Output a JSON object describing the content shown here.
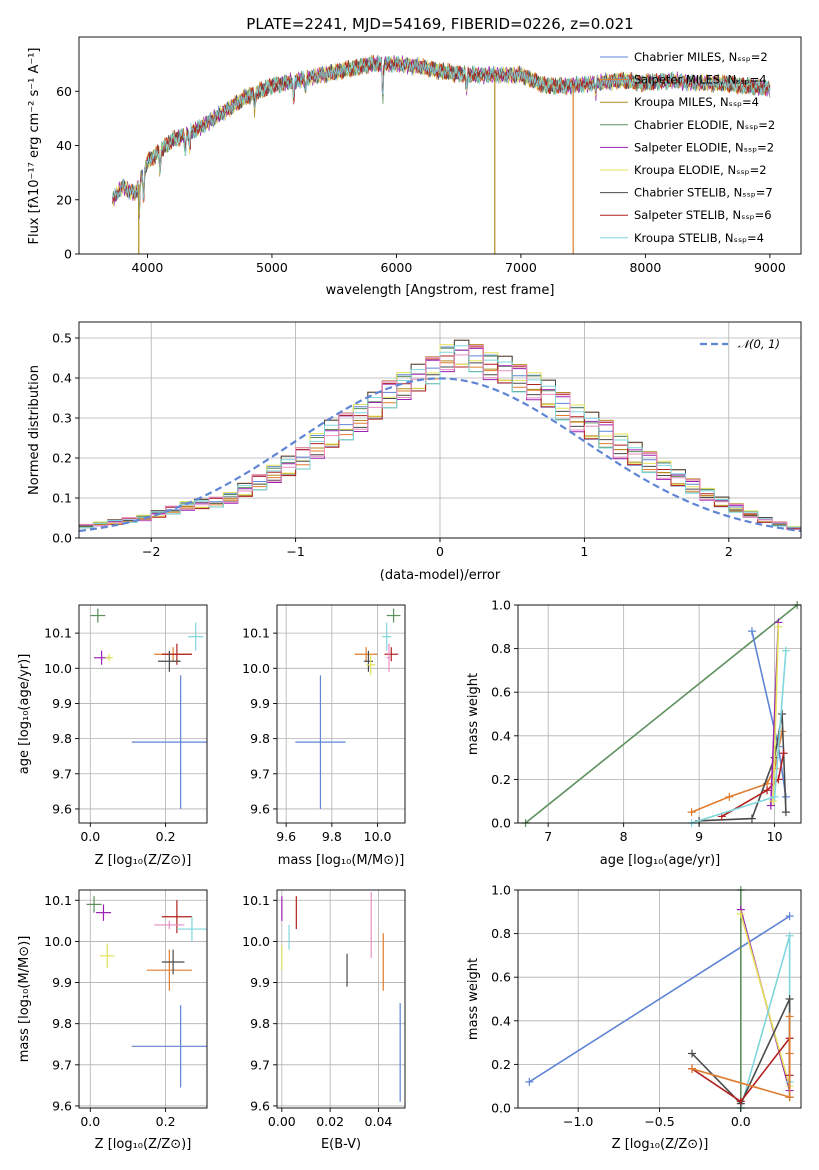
{
  "colors": {
    "chabrier_miles": "#5f85d5",
    "salpeter_miles": "#e07c2e",
    "kroupa_miles": "#b58a1e",
    "chabrier_elodie": "#5b8f5b",
    "salpeter_elodie": "#9b22b3",
    "kroupa_elodie": "#e3e25a",
    "chabrier_stelib": "#4a4a4a",
    "salpeter_stelib": "#b22020",
    "kroupa_stelib": "#7fd6dc",
    "pink": "#e88fc2",
    "normal_curve": "#5f85d5"
  },
  "chart_data": [
    {
      "id": "spectrum",
      "type": "line",
      "title": "PLATE=2241, MJD=54169, FIBERID=0226, z=0.021",
      "xlabel": "wavelength [Angstrom, rest frame]",
      "ylabel": "Flux [fλ10⁻¹⁷ erg cm⁻² s⁻¹ A⁻¹]",
      "xlim": [
        3450,
        9250
      ],
      "ylim": [
        0,
        80
      ],
      "xticks": [
        "4000",
        "5000",
        "6000",
        "7000",
        "8000",
        "9000"
      ],
      "yticks": [
        "0",
        "20",
        "40",
        "60"
      ],
      "grid": false,
      "legend_position": "top-right",
      "legend": [
        "Chabrier MILES, Nₛₛₚ=2",
        "Salpeter MILES, Nₛₛₚ=4",
        "Kroupa MILES, Nₛₛₚ=4",
        "Chabrier ELODIE, Nₛₛₚ=2",
        "Salpeter ELODIE, Nₛₛₚ=2",
        "Kroupa ELODIE, Nₛₛₚ=2",
        "Chabrier STELIB, Nₛₛₚ=7",
        "Salpeter STELIB, Nₛₛₚ=6",
        "Kroupa STELIB, Nₛₛₚ=4"
      ],
      "spectrum_envelope": {
        "x": [
          3720,
          3800,
          3900,
          4000,
          4100,
          4200,
          4400,
          4600,
          4800,
          5000,
          5200,
          5400,
          5600,
          5800,
          6000,
          6200,
          6400,
          6600,
          6800,
          7000,
          7200,
          7400,
          7600,
          7800,
          8000,
          8200,
          8400,
          8600,
          8800,
          9000
        ],
        "y": [
          20,
          25,
          22,
          34,
          38,
          42,
          46,
          52,
          58,
          62,
          64,
          66,
          68,
          70,
          70,
          69,
          67,
          66,
          66,
          66,
          62,
          62,
          63,
          64,
          63,
          64,
          63,
          63,
          62,
          61
        ]
      },
      "dips": [
        {
          "x": 3930,
          "y": 0
        },
        {
          "x": 6790,
          "y": 0
        },
        {
          "x": 7420,
          "y": 0
        }
      ]
    },
    {
      "id": "residuals",
      "type": "histogram",
      "xlabel": "(data-model)/error",
      "ylabel": "Normed distribution",
      "xlim": [
        -2.5,
        2.5
      ],
      "ylim": [
        0,
        0.54
      ],
      "xticks": [
        "−2",
        "−1",
        "0",
        "1",
        "2"
      ],
      "yticks": [
        "0.0",
        "0.1",
        "0.2",
        "0.3",
        "0.4",
        "0.5"
      ],
      "grid": true,
      "legend": [
        "𝒩(0, 1)"
      ],
      "legend_position": "top-right",
      "bin_width": 0.1,
      "base_density": [
        0.03,
        0.035,
        0.04,
        0.045,
        0.05,
        0.06,
        0.07,
        0.08,
        0.085,
        0.09,
        0.1,
        0.12,
        0.14,
        0.16,
        0.18,
        0.2,
        0.23,
        0.26,
        0.28,
        0.3,
        0.33,
        0.36,
        0.38,
        0.4,
        0.42,
        0.45,
        0.46,
        0.45,
        0.43,
        0.42,
        0.4,
        0.38,
        0.36,
        0.33,
        0.3,
        0.28,
        0.26,
        0.23,
        0.21,
        0.19,
        0.17,
        0.15,
        0.13,
        0.11,
        0.09,
        0.075,
        0.06,
        0.045,
        0.035,
        0.025
      ]
    },
    {
      "id": "age_vs_Z",
      "type": "errorbar",
      "xlabel": "Z [log₁₀(Z/Z⊙)]",
      "ylabel": "age  [log₁₀(age/yr)]",
      "xlim": [
        -0.03,
        0.31
      ],
      "ylim": [
        9.56,
        10.18
      ],
      "xticks": [
        "0.0",
        "0.2"
      ],
      "yticks": [
        "9.6",
        "9.7",
        "9.8",
        "9.9",
        "10.0",
        "10.1"
      ],
      "grid": true,
      "points": [
        {
          "model": "chabrier_miles",
          "x": 0.24,
          "xerr": 0.13,
          "y": 9.79,
          "yerr": 0.19
        },
        {
          "model": "salpeter_miles",
          "x": 0.22,
          "xerr": 0.05,
          "y": 10.04,
          "yerr": 0.02
        },
        {
          "model": "salpeter_stelib",
          "x": 0.23,
          "xerr": 0.04,
          "y": 10.04,
          "yerr": 0.03
        },
        {
          "model": "chabrier_stelib",
          "x": 0.21,
          "xerr": 0.03,
          "y": 10.02,
          "yerr": 0.03
        },
        {
          "model": "salpeter_elodie",
          "x": 0.03,
          "xerr": 0.02,
          "y": 10.03,
          "yerr": 0.02
        },
        {
          "model": "kroupa_stelib",
          "x": 0.28,
          "xerr": 0.02,
          "y": 10.09,
          "yerr": 0.04
        },
        {
          "model": "chabrier_elodie",
          "x": 0.02,
          "xerr": 0.02,
          "y": 10.15,
          "yerr": 0.02
        },
        {
          "model": "kroupa_elodie",
          "x": 0.05,
          "xerr": 0.01,
          "y": 10.03,
          "yerr": 0.01
        }
      ]
    },
    {
      "id": "age_vs_mass",
      "type": "errorbar",
      "xlabel": "mass [log₁₀(M/M⊙)]",
      "ylabel": "",
      "xlim": [
        9.56,
        10.12
      ],
      "ylim": [
        9.56,
        10.18
      ],
      "xticks": [
        "9.6",
        "9.8",
        "10.0"
      ],
      "yticks": [
        "9.6",
        "9.7",
        "9.8",
        "9.9",
        "10.0",
        "10.1"
      ],
      "grid": true,
      "points": [
        {
          "model": "chabrier_miles",
          "x": 9.75,
          "xerr": 0.11,
          "y": 9.79,
          "yerr": 0.19
        },
        {
          "model": "salpeter_miles",
          "x": 9.95,
          "xerr": 0.05,
          "y": 10.04,
          "yerr": 0.02
        },
        {
          "model": "salpeter_stelib",
          "x": 10.06,
          "xerr": 0.03,
          "y": 10.04,
          "yerr": 0.02
        },
        {
          "model": "chabrier_stelib",
          "x": 9.96,
          "xerr": 0.02,
          "y": 10.02,
          "yerr": 0.03
        },
        {
          "model": "kroupa_stelib",
          "x": 10.04,
          "xerr": 0.02,
          "y": 10.09,
          "yerr": 0.04
        },
        {
          "model": "chabrier_elodie",
          "x": 10.07,
          "xerr": 0.03,
          "y": 10.15,
          "yerr": 0.02
        },
        {
          "model": "pink",
          "x": 10.05,
          "xerr": 0.01,
          "y": 10.03,
          "yerr": 0.04
        },
        {
          "model": "kroupa_elodie",
          "x": 9.97,
          "xerr": 0.02,
          "y": 10.01,
          "yerr": 0.03
        }
      ]
    },
    {
      "id": "weight_vs_age",
      "type": "line",
      "xlabel": "age  [log₁₀(age/yr)]",
      "ylabel": "mass weight",
      "xlim": [
        6.6,
        10.35
      ],
      "ylim": [
        0,
        1
      ],
      "xticks": [
        "7",
        "8",
        "9",
        "10"
      ],
      "yticks": [
        "0.0",
        "0.2",
        "0.4",
        "0.6",
        "0.8",
        "1.0"
      ],
      "grid": true,
      "series": [
        {
          "model": "chabrier_elodie",
          "x": [
            6.7,
            10.3
          ],
          "y": [
            0.0,
            1.0
          ]
        },
        {
          "model": "chabrier_miles",
          "x": [
            9.7,
            10.05,
            10.15
          ],
          "y": [
            0.88,
            0.35,
            0.12
          ]
        },
        {
          "model": "salpeter_miles",
          "x": [
            8.9,
            9.4,
            9.9,
            10.0,
            10.1
          ],
          "y": [
            0.05,
            0.12,
            0.18,
            0.25,
            0.42
          ]
        },
        {
          "model": "chabrier_stelib",
          "x": [
            9.0,
            9.7,
            10.0,
            10.1,
            10.15
          ],
          "y": [
            0.01,
            0.02,
            0.3,
            0.5,
            0.05
          ]
        },
        {
          "model": "salpeter_stelib",
          "x": [
            9.3,
            9.9,
            10.05,
            10.12
          ],
          "y": [
            0.03,
            0.15,
            0.2,
            0.32
          ]
        },
        {
          "model": "salpeter_elodie",
          "x": [
            9.95,
            10.05
          ],
          "y": [
            0.08,
            0.92
          ]
        },
        {
          "model": "kroupa_elodie",
          "x": [
            9.98,
            10.05
          ],
          "y": [
            0.1,
            0.9
          ]
        },
        {
          "model": "kroupa_stelib",
          "x": [
            8.9,
            10.0,
            10.15
          ],
          "y": [
            0.0,
            0.12,
            0.79
          ]
        }
      ]
    },
    {
      "id": "mass_vs_Z",
      "type": "errorbar",
      "xlabel": "Z [log₁₀(Z/Z⊙)]",
      "ylabel": "mass [log₁₀(M/M⊙)]",
      "xlim": [
        -0.03,
        0.31
      ],
      "ylim": [
        9.595,
        10.125
      ],
      "xticks": [
        "0.0",
        "0.2"
      ],
      "yticks": [
        "9.6",
        "9.7",
        "9.8",
        "9.9",
        "10.0",
        "10.1"
      ],
      "grid": true,
      "points": [
        {
          "model": "chabrier_miles",
          "x": 0.24,
          "xerr": 0.13,
          "y": 9.745,
          "yerr": 0.1
        },
        {
          "model": "salpeter_miles",
          "x": 0.21,
          "xerr": 0.06,
          "y": 9.93,
          "yerr": 0.05
        },
        {
          "model": "salpeter_stelib",
          "x": 0.23,
          "xerr": 0.04,
          "y": 10.06,
          "yerr": 0.04
        },
        {
          "model": "chabrier_stelib",
          "x": 0.22,
          "xerr": 0.03,
          "y": 9.95,
          "yerr": 0.03
        },
        {
          "model": "salpeter_elodie",
          "x": 0.035,
          "xerr": 0.02,
          "y": 10.07,
          "yerr": 0.02
        },
        {
          "model": "kroupa_stelib",
          "x": 0.27,
          "xerr": 0.04,
          "y": 10.03,
          "yerr": 0.03
        },
        {
          "model": "chabrier_elodie",
          "x": 0.01,
          "xerr": 0.02,
          "y": 10.09,
          "yerr": 0.02
        },
        {
          "model": "kroupa_elodie",
          "x": 0.045,
          "xerr": 0.02,
          "y": 9.965,
          "yerr": 0.03
        },
        {
          "model": "pink",
          "x": 0.21,
          "xerr": 0.04,
          "y": 10.04,
          "yerr": 0.01
        }
      ]
    },
    {
      "id": "mass_vs_ebv",
      "type": "errorbar",
      "xlabel": "E(B-V)",
      "ylabel": "",
      "xlim": [
        -0.002,
        0.051
      ],
      "ylim": [
        9.595,
        10.125
      ],
      "xticks": [
        "0.00",
        "0.02",
        "0.04"
      ],
      "yticks": [
        "9.6",
        "9.7",
        "9.8",
        "9.9",
        "10.0",
        "10.1"
      ],
      "grid": true,
      "points": [
        {
          "model": "chabrier_miles",
          "x": 0.049,
          "xerr": 0,
          "y": 9.73,
          "yerr": 0.12
        },
        {
          "model": "salpeter_miles",
          "x": 0.042,
          "xerr": 0,
          "y": 9.95,
          "yerr": 0.07
        },
        {
          "model": "pink",
          "x": 0.037,
          "xerr": 0,
          "y": 10.04,
          "yerr": 0.08
        },
        {
          "model": "chabrier_stelib",
          "x": 0.027,
          "xerr": 0,
          "y": 9.93,
          "yerr": 0.04
        },
        {
          "model": "salpeter_stelib",
          "x": 0.006,
          "xerr": 0,
          "y": 10.07,
          "yerr": 0.04
        },
        {
          "model": "kroupa_stelib",
          "x": 0.003,
          "xerr": 0,
          "y": 10.01,
          "yerr": 0.03
        },
        {
          "model": "salpeter_elodie",
          "x": 0.0,
          "xerr": 0,
          "y": 10.08,
          "yerr": 0.03
        },
        {
          "model": "kroupa_elodie",
          "x": 0.0,
          "xerr": 0,
          "y": 9.96,
          "yerr": 0.03
        }
      ]
    },
    {
      "id": "weight_vs_Z",
      "type": "line",
      "xlabel": "Z [log₁₀(Z/Z⊙)]",
      "ylabel": "mass weight",
      "xlim": [
        -1.37,
        0.37
      ],
      "ylim": [
        0,
        1
      ],
      "xticks": [
        "−1.0",
        "−0.5",
        "0.0"
      ],
      "yticks": [
        "0.0",
        "0.2",
        "0.4",
        "0.6",
        "0.8",
        "1.0"
      ],
      "grid": true,
      "series": [
        {
          "model": "chabrier_miles",
          "x": [
            -1.3,
            0.3
          ],
          "y": [
            0.12,
            0.88
          ]
        },
        {
          "model": "chabrier_elodie",
          "x": [
            0.0,
            0.0
          ],
          "y": [
            0.0,
            1.0
          ]
        },
        {
          "model": "salpeter_elodie",
          "x": [
            0.0,
            0.3
          ],
          "y": [
            0.91,
            0.08
          ]
        },
        {
          "model": "kroupa_elodie",
          "x": [
            0.0,
            0.3
          ],
          "y": [
            0.89,
            0.1
          ]
        },
        {
          "model": "kroupa_stelib",
          "x": [
            0.0,
            0.3,
            0.3
          ],
          "y": [
            0.0,
            0.79,
            0.12
          ]
        },
        {
          "model": "chabrier_stelib",
          "x": [
            -0.3,
            0.0,
            0.3,
            0.3
          ],
          "y": [
            0.25,
            0.02,
            0.5,
            0.05
          ]
        },
        {
          "model": "salpeter_stelib",
          "x": [
            -0.3,
            0.0,
            0.3,
            0.3
          ],
          "y": [
            0.18,
            0.03,
            0.32,
            0.15
          ]
        },
        {
          "model": "salpeter_miles",
          "x": [
            -0.3,
            0.3,
            0.3,
            0.3
          ],
          "y": [
            0.18,
            0.05,
            0.42,
            0.25
          ]
        }
      ]
    }
  ]
}
